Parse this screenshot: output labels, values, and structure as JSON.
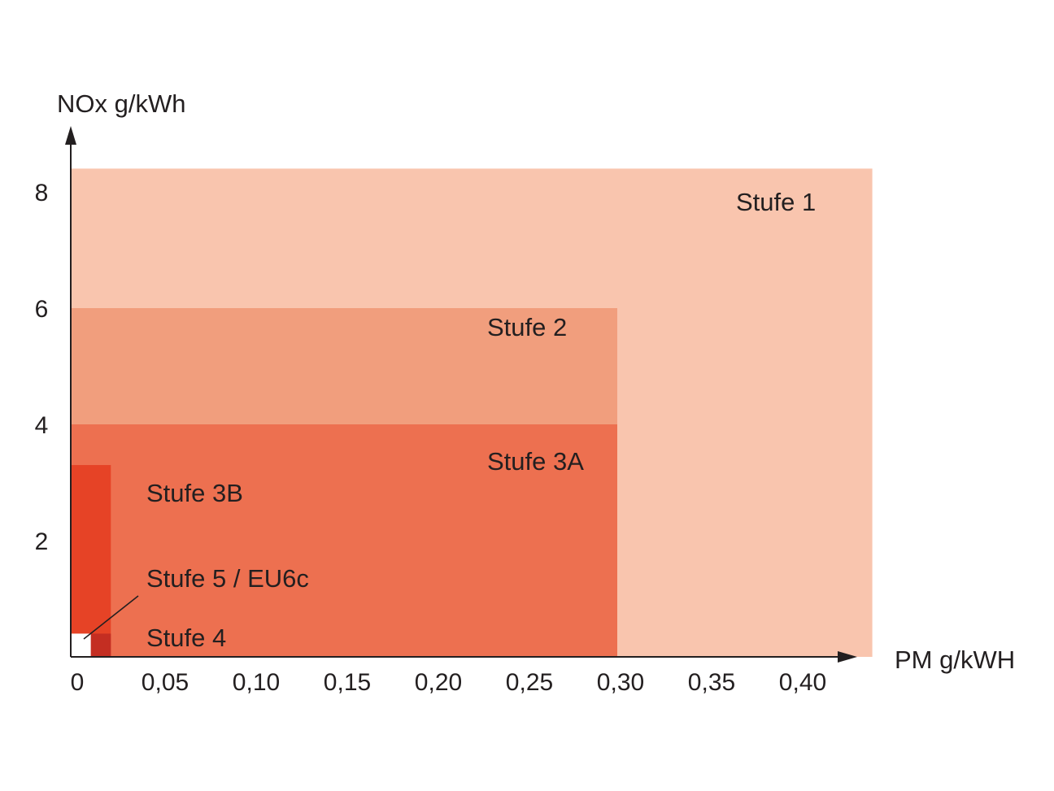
{
  "chart_data": {
    "type": "area",
    "ylabel": "NOx g/kWh",
    "xlabel": "PM g/kWH",
    "x_ticks": [
      "0",
      "0,05",
      "0,10",
      "0,15",
      "0,20",
      "0,25",
      "0,30",
      "0,35",
      "0,40"
    ],
    "x_tick_values": [
      0,
      0.05,
      0.1,
      0.15,
      0.2,
      0.25,
      0.3,
      0.35,
      0.4
    ],
    "y_ticks": [
      "2",
      "4",
      "6",
      "8"
    ],
    "y_tick_values": [
      2,
      4,
      6,
      8
    ],
    "xlim": [
      0,
      0.45
    ],
    "ylim": [
      0,
      9.4
    ],
    "grid": false,
    "series": [
      {
        "name": "Stufe 1",
        "pm": 0.44,
        "nox": 8.4,
        "color": "#f9c5ae"
      },
      {
        "name": "Stufe 2",
        "pm": 0.3,
        "nox": 6.0,
        "color": "#f19e7d"
      },
      {
        "name": "Stufe 3A",
        "pm": 0.3,
        "nox": 4.0,
        "color": "#ed7050"
      },
      {
        "name": "Stufe 3B",
        "pm": 0.022,
        "nox": 3.3,
        "color": "#e64326"
      },
      {
        "name": "Stufe 4",
        "pm": 0.022,
        "nox": 0.4,
        "color": "#c42e22"
      },
      {
        "name": "Stufe 5 / EU6c",
        "pm": 0.011,
        "nox": 0.4,
        "color": "#ffffff"
      }
    ]
  }
}
